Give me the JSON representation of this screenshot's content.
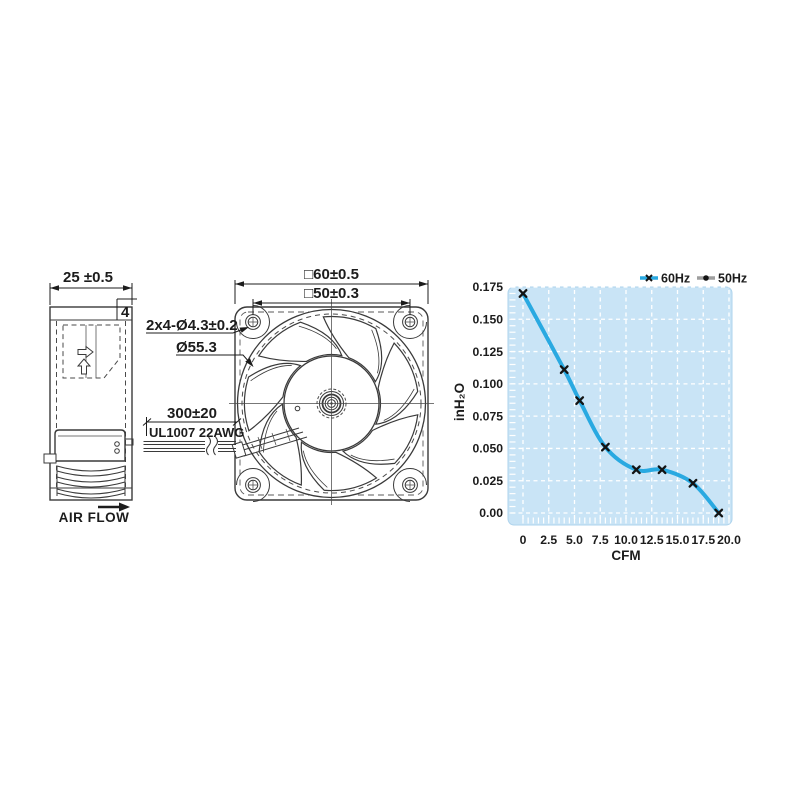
{
  "drawing": {
    "side_view": {
      "width_dim": "25 ±0.5",
      "flange_dim": "4",
      "airflow_label": "AIR FLOW"
    },
    "front_view": {
      "outer_dim": "□60±0.5",
      "hole_pitch_dim": "□50±0.3",
      "hole_dia_dim": "2x4-Ø4.3±0.2",
      "venturi_dia_dim": "Ø55.3"
    },
    "lead_wires": {
      "length_dim": "300±20",
      "spec": "UL1007 22AWG"
    }
  },
  "chart_data": {
    "type": "line",
    "title": "",
    "xlabel": "CFM",
    "ylabel": "inH₂O",
    "xlim": [
      0,
      20
    ],
    "ylim": [
      0,
      0.175
    ],
    "xticks": [
      0,
      2.5,
      5.0,
      7.5,
      10.0,
      12.5,
      15.0,
      17.5,
      20.0
    ],
    "xtick_labels": [
      "0",
      "2.5",
      "5.0",
      "7.5",
      "10.0",
      "12.5",
      "15.0",
      "17.5",
      "20.0"
    ],
    "yticks": [
      0,
      0.025,
      0.05,
      0.075,
      0.1,
      0.125,
      0.15,
      0.175
    ],
    "ytick_labels": [
      "0.00",
      "0.025",
      "0.050",
      "0.075",
      "0.100",
      "0.125",
      "0.150",
      "0.175"
    ],
    "x_minor_step": 0.5,
    "y_minor_step": 0.005,
    "grid": "dashed-white",
    "plot_bg": "#c9e4f6",
    "plot_border": "#aed3ec",
    "grid_color": "#ffffff",
    "legend_position": "top-right",
    "legend": [
      {
        "name": "60Hz",
        "color": "#29a9e1",
        "marker": "x"
      },
      {
        "name": "50Hz",
        "color": "#9e9e9e",
        "marker": "dot"
      }
    ],
    "series": [
      {
        "name": "60Hz",
        "color": "#29a9e1",
        "marker": "x",
        "marker_color": "#141414",
        "points": [
          [
            0,
            0.17
          ],
          [
            4,
            0.111
          ],
          [
            5.5,
            0.087
          ],
          [
            8,
            0.051
          ],
          [
            11,
            0.0335
          ],
          [
            13.5,
            0.0335
          ],
          [
            16.5,
            0.023
          ],
          [
            19,
            0.0
          ]
        ]
      }
    ]
  }
}
